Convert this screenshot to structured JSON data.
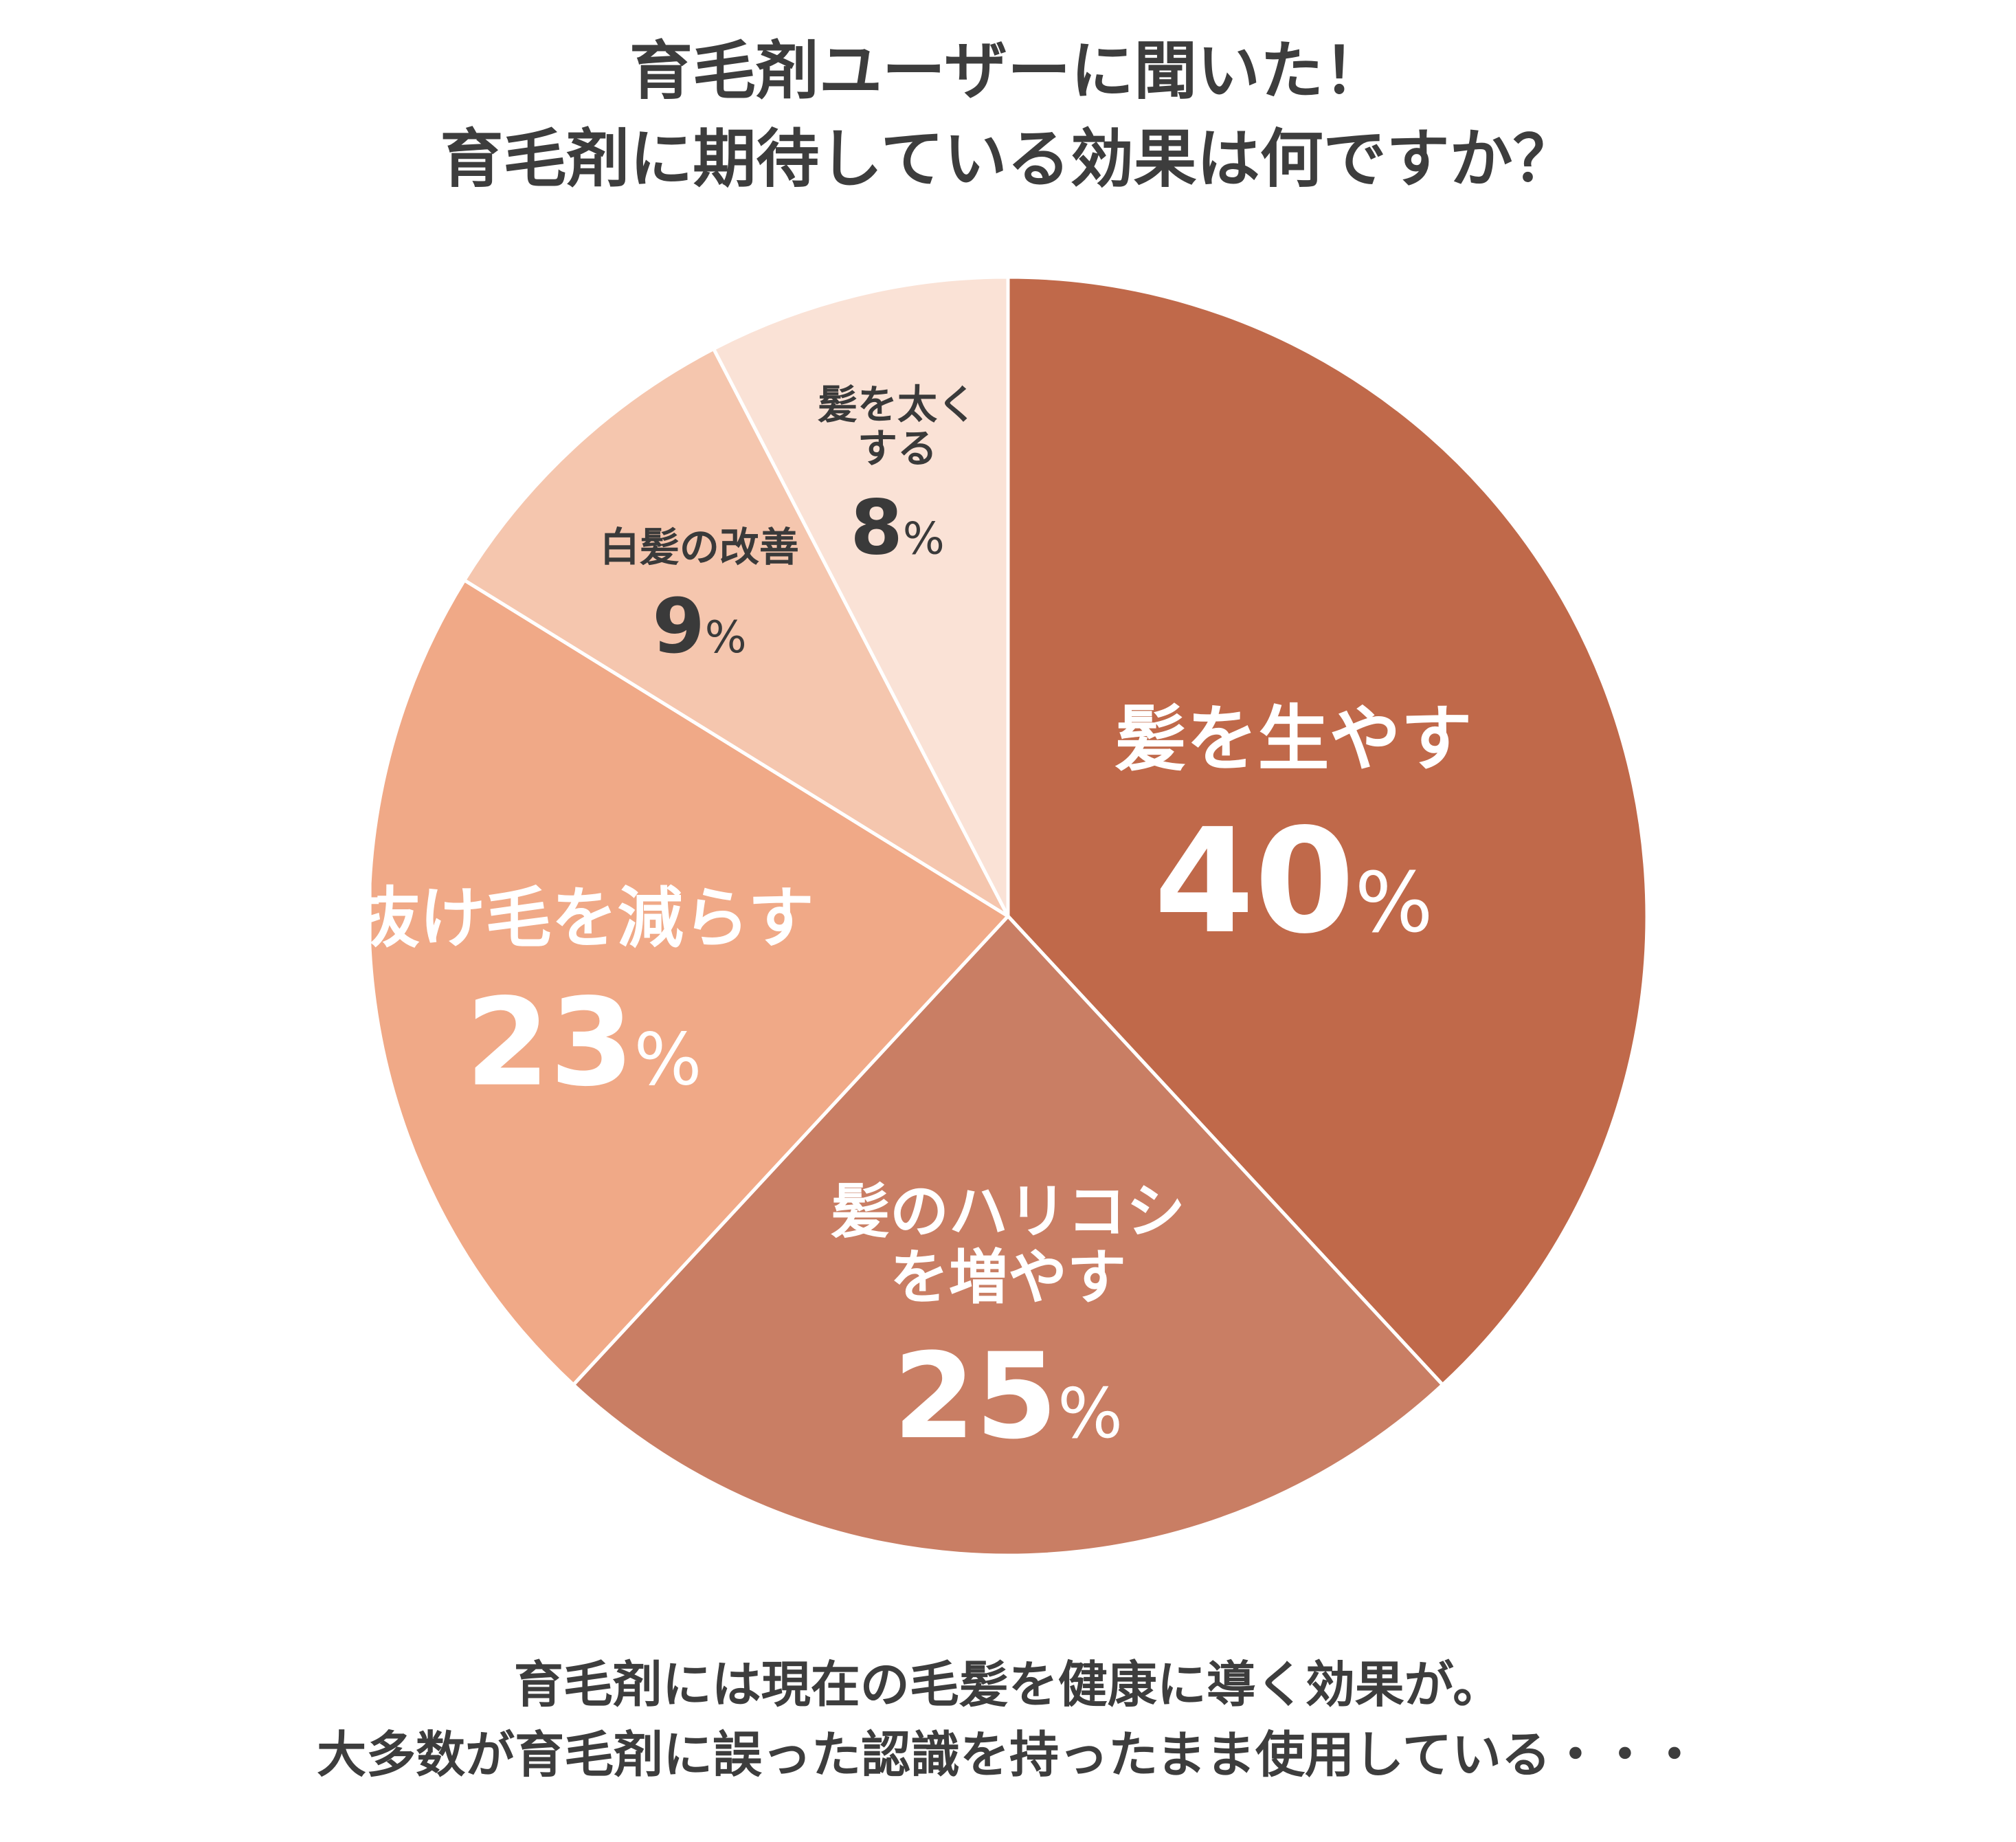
{
  "title_lines": [
    "育毛剤ユーザーに聞いた！",
    "育毛剤に期待している効果は何ですか？"
  ],
  "footer_lines": [
    "育毛剤には現在の毛髪を健康に導く効果が。",
    "大多数が育毛剤に誤った認識を持ったまま使用している・・・"
  ],
  "chart_data": {
    "type": "pie",
    "unit": "%",
    "slices": [
      {
        "label_lines": [
          "髪を生やす"
        ],
        "value": 40,
        "value_label": "40",
        "color": "#c0694a",
        "text_color": "#ffffff"
      },
      {
        "label_lines": [
          "髪のハリコシ",
          "を増やす"
        ],
        "value": 25,
        "value_label": "25",
        "color": "#c97e64",
        "text_color": "#ffffff"
      },
      {
        "label_lines": [
          "抜け毛を減らす"
        ],
        "value": 23,
        "value_label": "23",
        "color": "#f0a987",
        "text_color": "#ffffff"
      },
      {
        "label_lines": [
          "白髪の改善"
        ],
        "value": 9,
        "value_label": "9",
        "color": "#f5c6ae",
        "text_color": "#3a3a3a"
      },
      {
        "label_lines": [
          "髪を太く",
          "する"
        ],
        "value": 8,
        "value_label": "8",
        "color": "#fae2d6",
        "text_color": "#3a3a3a"
      }
    ]
  }
}
